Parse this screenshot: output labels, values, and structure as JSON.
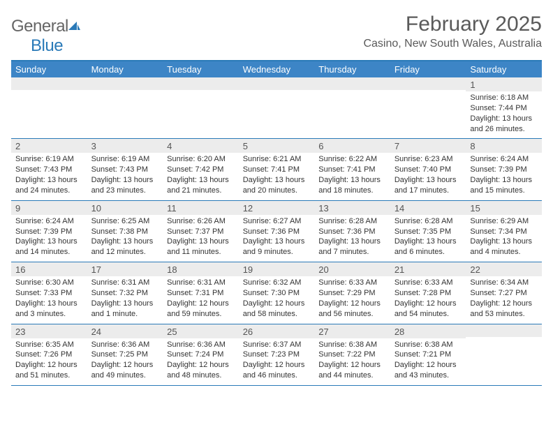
{
  "logo": {
    "general": "General",
    "blue": "Blue"
  },
  "title": "February 2025",
  "location": "Casino, New South Wales, Australia",
  "colors": {
    "header_bg": "#3d85c6",
    "accent": "#2a7ab8",
    "daynum_bg": "#ececec",
    "text": "#333333",
    "title_text": "#5a5a5a"
  },
  "daysOfWeek": [
    "Sunday",
    "Monday",
    "Tuesday",
    "Wednesday",
    "Thursday",
    "Friday",
    "Saturday"
  ],
  "weeks": [
    [
      {
        "n": "",
        "sunrise": "",
        "sunset": "",
        "daylight": ""
      },
      {
        "n": "",
        "sunrise": "",
        "sunset": "",
        "daylight": ""
      },
      {
        "n": "",
        "sunrise": "",
        "sunset": "",
        "daylight": ""
      },
      {
        "n": "",
        "sunrise": "",
        "sunset": "",
        "daylight": ""
      },
      {
        "n": "",
        "sunrise": "",
        "sunset": "",
        "daylight": ""
      },
      {
        "n": "",
        "sunrise": "",
        "sunset": "",
        "daylight": ""
      },
      {
        "n": "1",
        "sunrise": "Sunrise: 6:18 AM",
        "sunset": "Sunset: 7:44 PM",
        "daylight": "Daylight: 13 hours and 26 minutes."
      }
    ],
    [
      {
        "n": "2",
        "sunrise": "Sunrise: 6:19 AM",
        "sunset": "Sunset: 7:43 PM",
        "daylight": "Daylight: 13 hours and 24 minutes."
      },
      {
        "n": "3",
        "sunrise": "Sunrise: 6:19 AM",
        "sunset": "Sunset: 7:43 PM",
        "daylight": "Daylight: 13 hours and 23 minutes."
      },
      {
        "n": "4",
        "sunrise": "Sunrise: 6:20 AM",
        "sunset": "Sunset: 7:42 PM",
        "daylight": "Daylight: 13 hours and 21 minutes."
      },
      {
        "n": "5",
        "sunrise": "Sunrise: 6:21 AM",
        "sunset": "Sunset: 7:41 PM",
        "daylight": "Daylight: 13 hours and 20 minutes."
      },
      {
        "n": "6",
        "sunrise": "Sunrise: 6:22 AM",
        "sunset": "Sunset: 7:41 PM",
        "daylight": "Daylight: 13 hours and 18 minutes."
      },
      {
        "n": "7",
        "sunrise": "Sunrise: 6:23 AM",
        "sunset": "Sunset: 7:40 PM",
        "daylight": "Daylight: 13 hours and 17 minutes."
      },
      {
        "n": "8",
        "sunrise": "Sunrise: 6:24 AM",
        "sunset": "Sunset: 7:39 PM",
        "daylight": "Daylight: 13 hours and 15 minutes."
      }
    ],
    [
      {
        "n": "9",
        "sunrise": "Sunrise: 6:24 AM",
        "sunset": "Sunset: 7:39 PM",
        "daylight": "Daylight: 13 hours and 14 minutes."
      },
      {
        "n": "10",
        "sunrise": "Sunrise: 6:25 AM",
        "sunset": "Sunset: 7:38 PM",
        "daylight": "Daylight: 13 hours and 12 minutes."
      },
      {
        "n": "11",
        "sunrise": "Sunrise: 6:26 AM",
        "sunset": "Sunset: 7:37 PM",
        "daylight": "Daylight: 13 hours and 11 minutes."
      },
      {
        "n": "12",
        "sunrise": "Sunrise: 6:27 AM",
        "sunset": "Sunset: 7:36 PM",
        "daylight": "Daylight: 13 hours and 9 minutes."
      },
      {
        "n": "13",
        "sunrise": "Sunrise: 6:28 AM",
        "sunset": "Sunset: 7:36 PM",
        "daylight": "Daylight: 13 hours and 7 minutes."
      },
      {
        "n": "14",
        "sunrise": "Sunrise: 6:28 AM",
        "sunset": "Sunset: 7:35 PM",
        "daylight": "Daylight: 13 hours and 6 minutes."
      },
      {
        "n": "15",
        "sunrise": "Sunrise: 6:29 AM",
        "sunset": "Sunset: 7:34 PM",
        "daylight": "Daylight: 13 hours and 4 minutes."
      }
    ],
    [
      {
        "n": "16",
        "sunrise": "Sunrise: 6:30 AM",
        "sunset": "Sunset: 7:33 PM",
        "daylight": "Daylight: 13 hours and 3 minutes."
      },
      {
        "n": "17",
        "sunrise": "Sunrise: 6:31 AM",
        "sunset": "Sunset: 7:32 PM",
        "daylight": "Daylight: 13 hours and 1 minute."
      },
      {
        "n": "18",
        "sunrise": "Sunrise: 6:31 AM",
        "sunset": "Sunset: 7:31 PM",
        "daylight": "Daylight: 12 hours and 59 minutes."
      },
      {
        "n": "19",
        "sunrise": "Sunrise: 6:32 AM",
        "sunset": "Sunset: 7:30 PM",
        "daylight": "Daylight: 12 hours and 58 minutes."
      },
      {
        "n": "20",
        "sunrise": "Sunrise: 6:33 AM",
        "sunset": "Sunset: 7:29 PM",
        "daylight": "Daylight: 12 hours and 56 minutes."
      },
      {
        "n": "21",
        "sunrise": "Sunrise: 6:33 AM",
        "sunset": "Sunset: 7:28 PM",
        "daylight": "Daylight: 12 hours and 54 minutes."
      },
      {
        "n": "22",
        "sunrise": "Sunrise: 6:34 AM",
        "sunset": "Sunset: 7:27 PM",
        "daylight": "Daylight: 12 hours and 53 minutes."
      }
    ],
    [
      {
        "n": "23",
        "sunrise": "Sunrise: 6:35 AM",
        "sunset": "Sunset: 7:26 PM",
        "daylight": "Daylight: 12 hours and 51 minutes."
      },
      {
        "n": "24",
        "sunrise": "Sunrise: 6:36 AM",
        "sunset": "Sunset: 7:25 PM",
        "daylight": "Daylight: 12 hours and 49 minutes."
      },
      {
        "n": "25",
        "sunrise": "Sunrise: 6:36 AM",
        "sunset": "Sunset: 7:24 PM",
        "daylight": "Daylight: 12 hours and 48 minutes."
      },
      {
        "n": "26",
        "sunrise": "Sunrise: 6:37 AM",
        "sunset": "Sunset: 7:23 PM",
        "daylight": "Daylight: 12 hours and 46 minutes."
      },
      {
        "n": "27",
        "sunrise": "Sunrise: 6:38 AM",
        "sunset": "Sunset: 7:22 PM",
        "daylight": "Daylight: 12 hours and 44 minutes."
      },
      {
        "n": "28",
        "sunrise": "Sunrise: 6:38 AM",
        "sunset": "Sunset: 7:21 PM",
        "daylight": "Daylight: 12 hours and 43 minutes."
      },
      {
        "n": "",
        "sunrise": "",
        "sunset": "",
        "daylight": ""
      }
    ]
  ]
}
